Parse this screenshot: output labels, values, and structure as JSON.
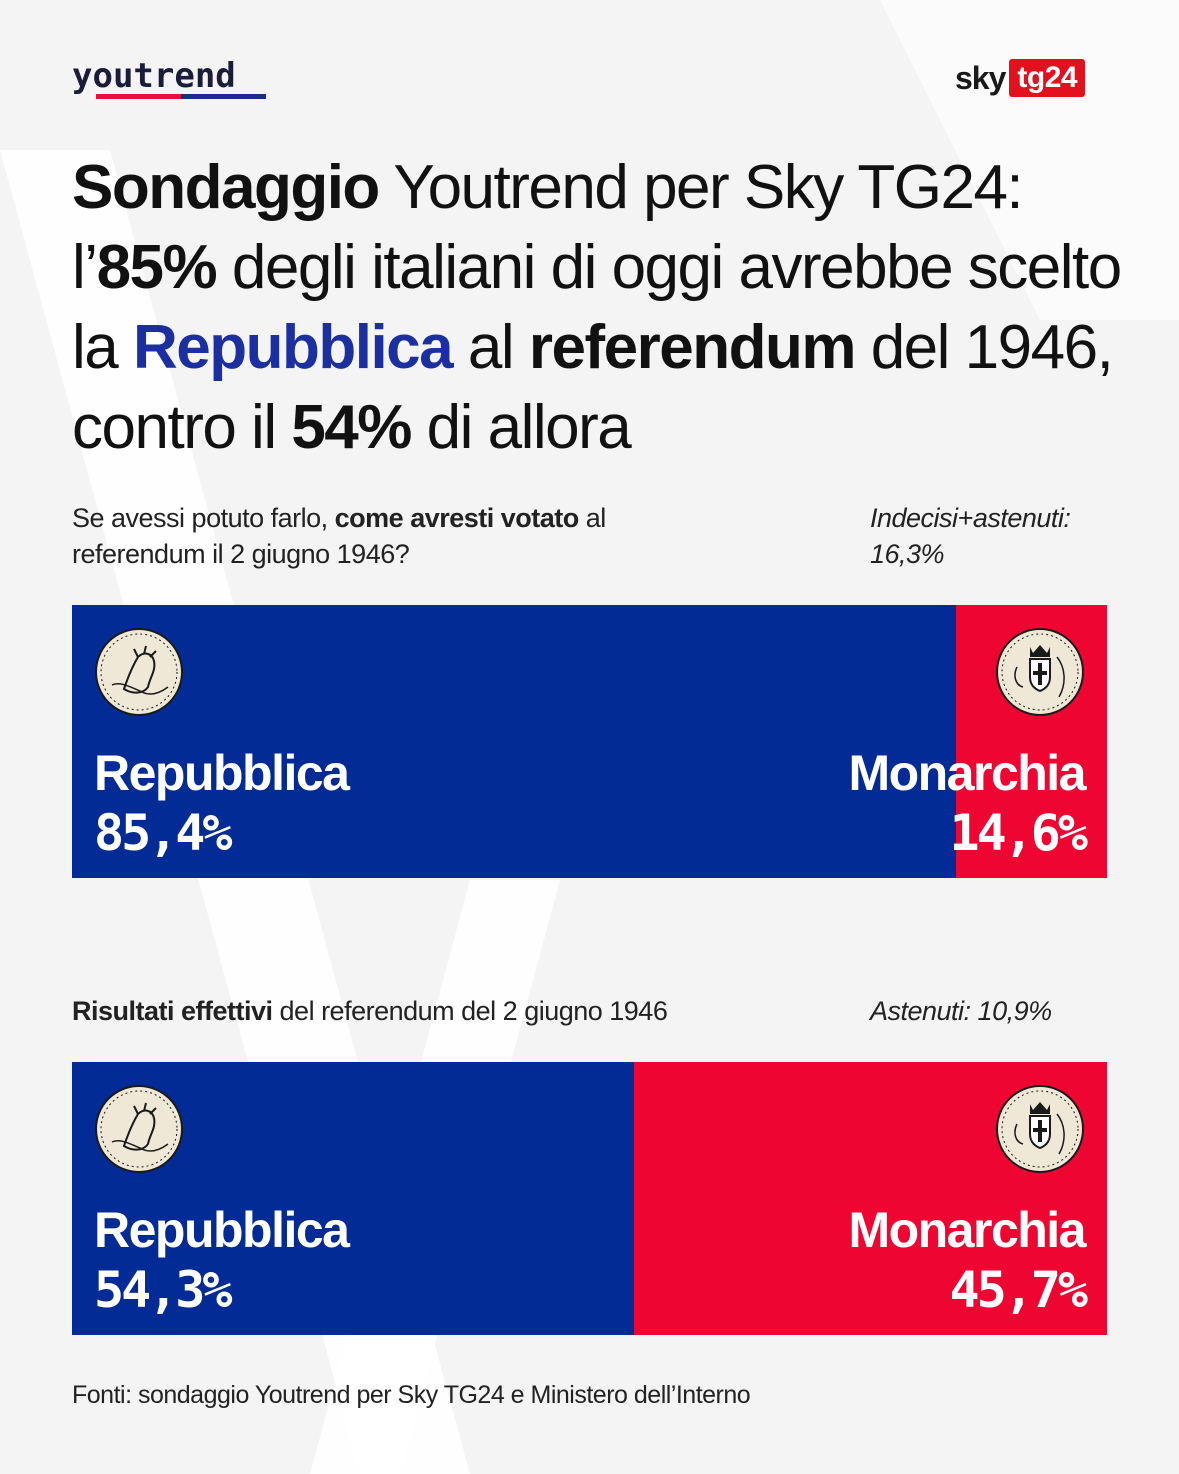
{
  "brand": {
    "youtrend": "youtrend",
    "sky": "sky",
    "tg24": "tg24"
  },
  "headline": {
    "p1_bold": "Sondaggio",
    "p2": " Youtrend per Sky TG24: l’",
    "p3_bold": "85%",
    "p4": " degli italiani di oggi avrebbe scelto la ",
    "p5_blue": "Repubblica",
    "p6": " al ",
    "p7_bold": "referendum",
    "p8": " del 1946, contro il ",
    "p9_bold": "54%",
    "p10": " di allora"
  },
  "survey": {
    "question_p1": "Se avessi potuto farlo, ",
    "question_bold": "come avresti votato",
    "question_p2": " al referendum il 2 giugno 1946?",
    "note": "Indecisi+astenuti: 16,3%"
  },
  "results": {
    "label_bold": "Risultati effettivi",
    "label_rest": " del referendum del 2 giugno 1946",
    "note": "Astenuti: 10,9%"
  },
  "footer": "Fonti: sondaggio Youtrend per Sky TG24 e Ministero dell’Interno",
  "icons": {
    "republic": "republic-emblem-icon",
    "monarchy": "savoy-monarchy-emblem-icon"
  },
  "colors": {
    "republic": "#022b96",
    "monarchy": "#ee0532",
    "headline_accent": "#1c2fa0"
  },
  "chart_data": [
    {
      "type": "bar",
      "stacked": true,
      "orientation": "horizontal",
      "categories": [
        "Repubblica",
        "Monarchia"
      ],
      "values": [
        85.4,
        14.6
      ],
      "value_labels": [
        "85,4%",
        "14,6%"
      ],
      "unit": "%"
    },
    {
      "type": "bar",
      "stacked": true,
      "orientation": "horizontal",
      "categories": [
        "Repubblica",
        "Monarchia"
      ],
      "values": [
        54.3,
        45.7
      ],
      "value_labels": [
        "54,3%",
        "45,7%"
      ],
      "unit": "%"
    }
  ]
}
